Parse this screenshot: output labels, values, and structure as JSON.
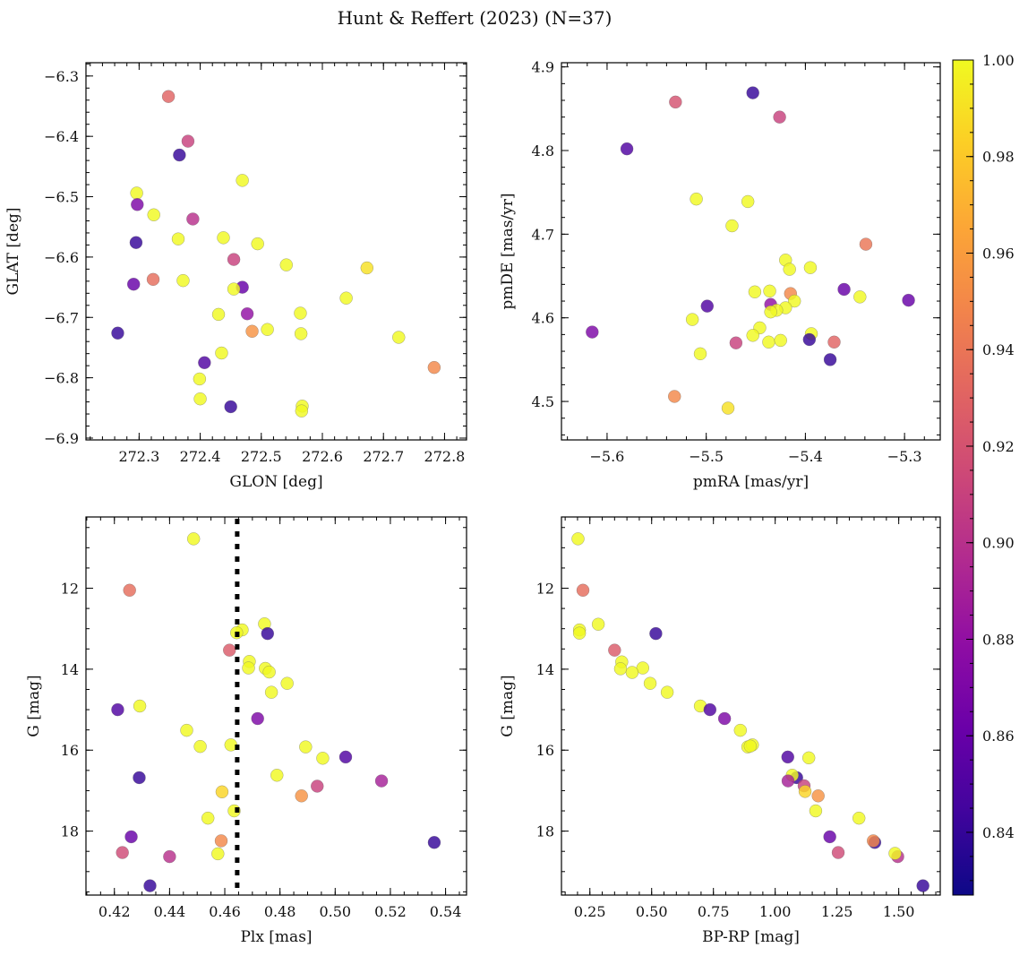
{
  "title": "Hunt & Reffert (2023) (N=37)",
  "colorbar": {
    "colormap": "plasma",
    "range": [
      0.827,
      1.0
    ],
    "ticks": [
      0.84,
      0.86,
      0.88,
      0.9,
      0.92,
      0.94,
      0.96,
      0.98,
      1.0
    ],
    "tick_labels": [
      "0.84",
      "0.86",
      "0.88",
      "0.90",
      "0.92",
      "0.94",
      "0.96",
      "0.98",
      "1.00"
    ],
    "minor_step": 0.005
  },
  "chart_data": [
    {
      "type": "scatter",
      "xlabel": "GLON [deg]",
      "ylabel": "GLAT [deg]",
      "xlim": [
        272.213,
        272.836
      ],
      "ylim": [
        -6.903,
        -6.278
      ],
      "xticks": [
        272.3,
        272.4,
        272.5,
        272.6,
        272.7,
        272.8
      ],
      "xtick_labels": [
        "272.3",
        "272.4",
        "272.5",
        "272.6",
        "272.7",
        "272.8"
      ],
      "yticks": [
        -6.3,
        -6.4,
        -6.5,
        -6.6,
        -6.7,
        -6.8,
        -6.9
      ],
      "ytick_labels": [
        "−6.3",
        "−6.4",
        "−6.5",
        "−6.6",
        "−6.7",
        "−6.8",
        "−6.9"
      ],
      "xminor": 0.02,
      "yminor": 0.02,
      "y_inverted": false,
      "points": [
        [
          272.348,
          -6.334,
          0.93
        ],
        [
          272.38,
          -6.408,
          0.91
        ],
        [
          272.366,
          -6.431,
          0.84
        ],
        [
          272.469,
          -6.473,
          1.0
        ],
        [
          272.296,
          -6.494,
          1.0
        ],
        [
          272.297,
          -6.513,
          0.87
        ],
        [
          272.324,
          -6.53,
          1.0
        ],
        [
          272.388,
          -6.537,
          0.9
        ],
        [
          272.364,
          -6.57,
          1.0
        ],
        [
          272.438,
          -6.568,
          1.0
        ],
        [
          272.295,
          -6.576,
          0.84
        ],
        [
          272.494,
          -6.578,
          1.0
        ],
        [
          272.455,
          -6.604,
          0.91
        ],
        [
          272.541,
          -6.613,
          1.0
        ],
        [
          272.673,
          -6.618,
          0.99
        ],
        [
          272.323,
          -6.637,
          0.935
        ],
        [
          272.372,
          -6.639,
          1.0
        ],
        [
          272.291,
          -6.645,
          0.86
        ],
        [
          272.469,
          -6.65,
          0.86
        ],
        [
          272.455,
          -6.653,
          1.0
        ],
        [
          272.639,
          -6.668,
          1.0
        ],
        [
          272.43,
          -6.695,
          1.0
        ],
        [
          272.477,
          -6.694,
          0.88
        ],
        [
          272.564,
          -6.693,
          1.0
        ],
        [
          272.265,
          -6.726,
          0.84
        ],
        [
          272.485,
          -6.723,
          0.955
        ],
        [
          272.51,
          -6.72,
          1.0
        ],
        [
          272.565,
          -6.727,
          1.0
        ],
        [
          272.725,
          -6.733,
          1.0
        ],
        [
          272.435,
          -6.759,
          1.0
        ],
        [
          272.783,
          -6.783,
          0.95
        ],
        [
          272.407,
          -6.775,
          0.85
        ],
        [
          272.399,
          -6.802,
          1.0
        ],
        [
          272.4,
          -6.835,
          1.0
        ],
        [
          272.45,
          -6.848,
          0.84
        ],
        [
          272.567,
          -6.847,
          1.0
        ],
        [
          272.566,
          -6.855,
          1.0
        ]
      ]
    },
    {
      "type": "scatter",
      "xlabel": "pmRA [mas/yr]",
      "ylabel": "pmDE [mas/yr]",
      "xlim": [
        -5.646,
        -5.264
      ],
      "ylim": [
        4.454,
        4.905
      ],
      "xticks": [
        -5.6,
        -5.5,
        -5.4,
        -5.3
      ],
      "xtick_labels": [
        "−5.6",
        "−5.5",
        "−5.4",
        "−5.3"
      ],
      "yticks": [
        4.5,
        4.6,
        4.7,
        4.8,
        4.9
      ],
      "ytick_labels": [
        "4.5",
        "4.6",
        "4.7",
        "4.8",
        "4.9"
      ],
      "xminor": 0.02,
      "yminor": 0.02,
      "y_inverted": false,
      "points": [
        [
          -5.453,
          4.869,
          0.84
        ],
        [
          -5.531,
          4.858,
          0.92
        ],
        [
          -5.426,
          4.84,
          0.91
        ],
        [
          -5.58,
          4.802,
          0.85
        ],
        [
          -5.51,
          4.742,
          1.0
        ],
        [
          -5.458,
          4.739,
          1.0
        ],
        [
          -5.474,
          4.71,
          1.0
        ],
        [
          -5.339,
          4.688,
          0.94
        ],
        [
          -5.42,
          4.669,
          1.0
        ],
        [
          -5.416,
          4.658,
          1.0
        ],
        [
          -5.395,
          4.66,
          1.0
        ],
        [
          -5.361,
          4.634,
          0.86
        ],
        [
          -5.451,
          4.631,
          1.0
        ],
        [
          -5.436,
          4.632,
          1.0
        ],
        [
          -5.415,
          4.629,
          0.95
        ],
        [
          -5.345,
          4.625,
          1.0
        ],
        [
          -5.296,
          4.621,
          0.86
        ],
        [
          -5.411,
          4.62,
          1.0
        ],
        [
          -5.435,
          4.616,
          0.88
        ],
        [
          -5.499,
          4.614,
          0.85
        ],
        [
          -5.42,
          4.612,
          1.0
        ],
        [
          -5.429,
          4.609,
          1.0
        ],
        [
          -5.435,
          4.607,
          1.0
        ],
        [
          -5.514,
          4.598,
          1.0
        ],
        [
          -5.615,
          4.583,
          0.87
        ],
        [
          -5.446,
          4.588,
          1.0
        ],
        [
          -5.453,
          4.579,
          1.0
        ],
        [
          -5.394,
          4.581,
          1.0
        ],
        [
          -5.396,
          4.574,
          0.84
        ],
        [
          -5.437,
          4.571,
          1.0
        ],
        [
          -5.425,
          4.573,
          1.0
        ],
        [
          -5.47,
          4.57,
          0.91
        ],
        [
          -5.371,
          4.571,
          0.93
        ],
        [
          -5.375,
          4.55,
          0.84
        ],
        [
          -5.506,
          4.557,
          1.0
        ],
        [
          -5.532,
          4.506,
          0.95
        ],
        [
          -5.478,
          4.492,
          0.99
        ]
      ]
    },
    {
      "type": "scatter",
      "xlabel": "Plx [mas]",
      "ylabel": "G [mag]",
      "xlim": [
        0.4097,
        0.5476
      ],
      "ylim": [
        10.24,
        19.58
      ],
      "xticks": [
        0.42,
        0.44,
        0.46,
        0.48,
        0.5,
        0.52,
        0.54
      ],
      "xtick_labels": [
        "0.42",
        "0.44",
        "0.46",
        "0.48",
        "0.50",
        "0.52",
        "0.54"
      ],
      "yticks": [
        12,
        14,
        16,
        18
      ],
      "ytick_labels": [
        "12",
        "14",
        "16",
        "18"
      ],
      "xminor": 0.005,
      "yminor": 0.5,
      "y_inverted": true,
      "vline": 0.4645,
      "points": [
        [
          0.4487,
          10.78,
          1.0
        ],
        [
          0.4255,
          12.05,
          0.935
        ],
        [
          0.4744,
          12.88,
          1.0
        ],
        [
          0.4663,
          13.03,
          1.0
        ],
        [
          0.4643,
          13.1,
          1.0
        ],
        [
          0.4755,
          13.12,
          0.84
        ],
        [
          0.4617,
          13.53,
          0.925
        ],
        [
          0.4689,
          13.81,
          1.0
        ],
        [
          0.4686,
          13.97,
          1.0
        ],
        [
          0.4747,
          13.98,
          1.0
        ],
        [
          0.4761,
          14.07,
          1.0
        ],
        [
          0.4826,
          14.35,
          1.0
        ],
        [
          0.4769,
          14.57,
          1.0
        ],
        [
          0.4292,
          14.91,
          1.0
        ],
        [
          0.4212,
          15.0,
          0.85
        ],
        [
          0.4719,
          15.22,
          0.87
        ],
        [
          0.4462,
          15.51,
          1.0
        ],
        [
          0.4511,
          15.91,
          1.0
        ],
        [
          0.4622,
          15.87,
          1.0
        ],
        [
          0.4893,
          15.92,
          1.0
        ],
        [
          0.4955,
          16.2,
          1.0
        ],
        [
          0.5038,
          16.17,
          0.85
        ],
        [
          0.429,
          16.68,
          0.84
        ],
        [
          0.4789,
          16.62,
          1.0
        ],
        [
          0.5168,
          16.76,
          0.89
        ],
        [
          0.4935,
          16.89,
          0.91
        ],
        [
          0.459,
          17.03,
          0.985
        ],
        [
          0.4878,
          17.13,
          0.955
        ],
        [
          0.4634,
          17.5,
          1.0
        ],
        [
          0.4539,
          17.68,
          1.0
        ],
        [
          0.4261,
          18.14,
          0.86
        ],
        [
          0.4587,
          18.24,
          0.95
        ],
        [
          0.5359,
          18.28,
          0.84
        ],
        [
          0.4229,
          18.53,
          0.915
        ],
        [
          0.4575,
          18.56,
          1.0
        ],
        [
          0.44,
          18.63,
          0.9
        ],
        [
          0.4329,
          19.35,
          0.84
        ]
      ]
    },
    {
      "type": "scatter",
      "xlabel": "BP-RP [mag]",
      "ylabel": "G [mag]",
      "xlim": [
        0.135,
        1.668
      ],
      "ylim": [
        10.24,
        19.58
      ],
      "xticks": [
        0.25,
        0.5,
        0.75,
        1.0,
        1.25,
        1.5
      ],
      "xtick_labels": [
        "0.25",
        "0.50",
        "0.75",
        "1.00",
        "1.25",
        "1.50"
      ],
      "yticks": [
        12,
        14,
        16,
        18
      ],
      "ytick_labels": [
        "12",
        "14",
        "16",
        "18"
      ],
      "xminor": 0.05,
      "yminor": 0.5,
      "y_inverted": true,
      "points": [
        [
          0.202,
          10.78,
          1.0
        ],
        [
          0.222,
          12.05,
          0.935
        ],
        [
          0.284,
          12.89,
          1.0
        ],
        [
          0.208,
          13.03,
          1.0
        ],
        [
          0.208,
          13.11,
          1.0
        ],
        [
          0.517,
          13.12,
          0.84
        ],
        [
          0.35,
          13.53,
          0.925
        ],
        [
          0.379,
          13.82,
          1.0
        ],
        [
          0.374,
          13.99,
          1.0
        ],
        [
          0.464,
          13.97,
          1.0
        ],
        [
          0.421,
          14.08,
          1.0
        ],
        [
          0.494,
          14.35,
          1.0
        ],
        [
          0.563,
          14.57,
          1.0
        ],
        [
          0.697,
          14.91,
          1.0
        ],
        [
          0.736,
          15.0,
          0.85
        ],
        [
          0.795,
          15.22,
          0.87
        ],
        [
          0.859,
          15.51,
          1.0
        ],
        [
          0.889,
          15.92,
          1.0
        ],
        [
          0.908,
          15.87,
          1.0
        ],
        [
          0.899,
          15.9,
          1.0
        ],
        [
          1.051,
          16.17,
          0.85
        ],
        [
          1.136,
          16.19,
          1.0
        ],
        [
          1.087,
          16.68,
          0.84
        ],
        [
          1.069,
          16.62,
          1.0
        ],
        [
          1.052,
          16.76,
          0.89
        ],
        [
          1.117,
          16.88,
          0.91
        ],
        [
          1.121,
          17.02,
          0.985
        ],
        [
          1.174,
          17.13,
          0.955
        ],
        [
          1.164,
          17.5,
          1.0
        ],
        [
          1.339,
          17.68,
          1.0
        ],
        [
          1.221,
          18.14,
          0.86
        ],
        [
          1.403,
          18.28,
          0.84
        ],
        [
          1.397,
          18.24,
          0.95
        ],
        [
          1.255,
          18.53,
          0.915
        ],
        [
          1.496,
          18.63,
          0.9
        ],
        [
          1.485,
          18.55,
          1.0
        ],
        [
          1.598,
          19.35,
          0.84
        ]
      ]
    }
  ]
}
